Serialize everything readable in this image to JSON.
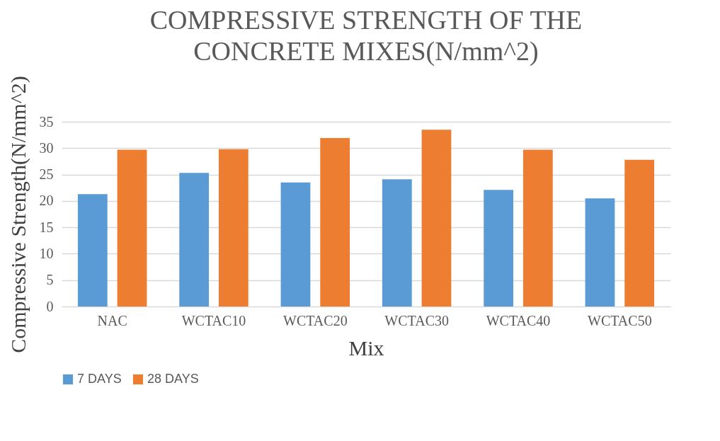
{
  "chart_data": {
    "type": "bar",
    "title": "COMPRESSIVE STRENGTH OF THE CONCRETE MIXES(N/mm^2)",
    "xlabel": "Mix",
    "ylabel": "Compressive Strength(N/mm^2)",
    "categories": [
      "NAC",
      "WCTAC10",
      "WCTAC20",
      "WCTAC30",
      "WCTAC40",
      "WCTAC50"
    ],
    "series": [
      {
        "name": "7 DAYS",
        "color": "#5b9bd5",
        "values": [
          21.3,
          25.3,
          23.5,
          24.1,
          22.1,
          20.5
        ]
      },
      {
        "name": "28 DAYS",
        "color": "#ed7d31",
        "values": [
          29.7,
          29.8,
          31.9,
          33.5,
          29.7,
          27.8
        ]
      }
    ],
    "ylim": [
      0,
      35
    ],
    "yticks": [
      0,
      5,
      10,
      15,
      20,
      25,
      30,
      35
    ],
    "grid": "y",
    "legend": "bottom"
  }
}
